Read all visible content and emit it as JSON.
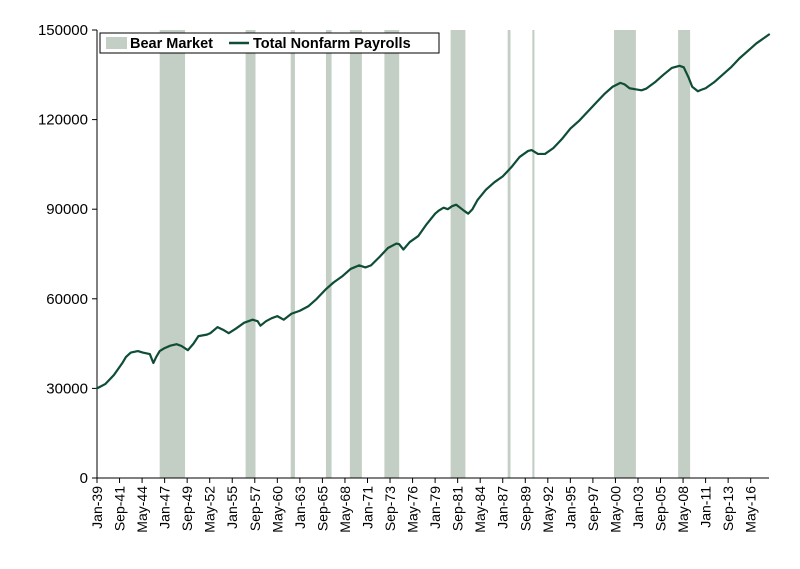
{
  "chart_data": {
    "type": "line",
    "title": "",
    "xlabel": "",
    "ylabel": "",
    "ylim": [
      0,
      150000
    ],
    "xlim": [
      "1939-01",
      "2018-07"
    ],
    "y_ticks": [
      0,
      30000,
      60000,
      90000,
      120000,
      150000
    ],
    "y_tick_labels": [
      "0",
      "30000",
      "60000",
      "90000",
      "120000",
      "150000"
    ],
    "x_ticks": [
      {
        "label": "Jan-39",
        "date": "1939-01"
      },
      {
        "label": "Sep-41",
        "date": "1941-09"
      },
      {
        "label": "May-44",
        "date": "1944-05"
      },
      {
        "label": "Jan-47",
        "date": "1947-01"
      },
      {
        "label": "Sep-49",
        "date": "1949-09"
      },
      {
        "label": "May-52",
        "date": "1952-05"
      },
      {
        "label": "Jan-55",
        "date": "1955-01"
      },
      {
        "label": "Sep-57",
        "date": "1957-09"
      },
      {
        "label": "May-60",
        "date": "1960-05"
      },
      {
        "label": "Jan-63",
        "date": "1963-01"
      },
      {
        "label": "Sep-65",
        "date": "1965-09"
      },
      {
        "label": "May-68",
        "date": "1968-05"
      },
      {
        "label": "Jan-71",
        "date": "1971-01"
      },
      {
        "label": "Sep-73",
        "date": "1973-09"
      },
      {
        "label": "May-76",
        "date": "1976-05"
      },
      {
        "label": "Jan-79",
        "date": "1979-01"
      },
      {
        "label": "Sep-81",
        "date": "1981-09"
      },
      {
        "label": "May-84",
        "date": "1984-05"
      },
      {
        "label": "Jan-87",
        "date": "1987-01"
      },
      {
        "label": "Sep-89",
        "date": "1989-09"
      },
      {
        "label": "May-92",
        "date": "1992-05"
      },
      {
        "label": "Jan-95",
        "date": "1995-01"
      },
      {
        "label": "Sep-97",
        "date": "1997-09"
      },
      {
        "label": "May-00",
        "date": "2000-05"
      },
      {
        "label": "Jan-03",
        "date": "2003-01"
      },
      {
        "label": "Sep-05",
        "date": "2005-09"
      },
      {
        "label": "May-08",
        "date": "2008-05"
      },
      {
        "label": "Jan-11",
        "date": "2011-01"
      },
      {
        "label": "Sep-13",
        "date": "2013-09"
      },
      {
        "label": "May-16",
        "date": "2016-05"
      }
    ],
    "legend": {
      "position": "top-left",
      "entries": [
        {
          "label": "Bear Market",
          "kind": "band",
          "color": "#c3cec4"
        },
        {
          "label": "Total Nonfarm Payrolls",
          "kind": "line",
          "color": "#0f4d34"
        }
      ]
    },
    "grid": false,
    "bear_markets": [
      {
        "start": "1946-06",
        "end": "1949-06"
      },
      {
        "start": "1956-08",
        "end": "1957-10"
      },
      {
        "start": "1961-12",
        "end": "1962-06"
      },
      {
        "start": "1966-02",
        "end": "1966-10"
      },
      {
        "start": "1968-12",
        "end": "1970-05"
      },
      {
        "start": "1973-01",
        "end": "1974-10"
      },
      {
        "start": "1980-11",
        "end": "1982-08"
      },
      {
        "start": "1987-08",
        "end": "1987-12"
      },
      {
        "start": "1990-07",
        "end": "1990-10"
      },
      {
        "start": "2000-03",
        "end": "2002-10"
      },
      {
        "start": "2007-10",
        "end": "2009-03"
      }
    ],
    "series": [
      {
        "name": "Total Nonfarm Payrolls",
        "color": "#0f4d34",
        "points": [
          [
            "1939-01",
            30000
          ],
          [
            "1940-01",
            31500
          ],
          [
            "1941-01",
            34500
          ],
          [
            "1942-01",
            38500
          ],
          [
            "1942-06",
            40500
          ],
          [
            "1943-01",
            42000
          ],
          [
            "1943-11",
            42500
          ],
          [
            "1944-06",
            42000
          ],
          [
            "1945-04",
            41500
          ],
          [
            "1945-09",
            38500
          ],
          [
            "1946-01",
            40500
          ],
          [
            "1946-06",
            42500
          ],
          [
            "1947-01",
            43500
          ],
          [
            "1947-09",
            44300
          ],
          [
            "1948-06",
            44800
          ],
          [
            "1949-01",
            44200
          ],
          [
            "1949-10",
            42800
          ],
          [
            "1950-06",
            45000
          ],
          [
            "1951-01",
            47500
          ],
          [
            "1952-01",
            48000
          ],
          [
            "1952-06",
            48500
          ],
          [
            "1953-04",
            50500
          ],
          [
            "1954-01",
            49500
          ],
          [
            "1954-08",
            48500
          ],
          [
            "1955-06",
            50000
          ],
          [
            "1956-06",
            52000
          ],
          [
            "1957-06",
            53000
          ],
          [
            "1958-01",
            52500
          ],
          [
            "1958-05",
            51000
          ],
          [
            "1959-01",
            52500
          ],
          [
            "1959-09",
            53500
          ],
          [
            "1960-05",
            54200
          ],
          [
            "1961-02",
            53000
          ],
          [
            "1962-01",
            55000
          ],
          [
            "1963-01",
            56000
          ],
          [
            "1964-01",
            57500
          ],
          [
            "1965-01",
            60000
          ],
          [
            "1966-01",
            63000
          ],
          [
            "1967-01",
            65500
          ],
          [
            "1968-01",
            67500
          ],
          [
            "1969-01",
            70000
          ],
          [
            "1970-01",
            71200
          ],
          [
            "1970-10",
            70500
          ],
          [
            "1971-06",
            71200
          ],
          [
            "1972-06",
            74000
          ],
          [
            "1973-06",
            77000
          ],
          [
            "1974-06",
            78500
          ],
          [
            "1974-10",
            78300
          ],
          [
            "1975-04",
            76500
          ],
          [
            "1976-01",
            79000
          ],
          [
            "1977-01",
            81000
          ],
          [
            "1978-01",
            85000
          ],
          [
            "1979-01",
            88500
          ],
          [
            "1979-06",
            89500
          ],
          [
            "1980-01",
            90500
          ],
          [
            "1980-07",
            90000
          ],
          [
            "1981-01",
            91000
          ],
          [
            "1981-07",
            91500
          ],
          [
            "1982-06",
            89500
          ],
          [
            "1982-12",
            88500
          ],
          [
            "1983-06",
            90000
          ],
          [
            "1984-01",
            93000
          ],
          [
            "1985-01",
            96500
          ],
          [
            "1986-01",
            99000
          ],
          [
            "1987-01",
            101000
          ],
          [
            "1988-01",
            104000
          ],
          [
            "1989-01",
            107500
          ],
          [
            "1990-01",
            109500
          ],
          [
            "1990-06",
            109800
          ],
          [
            "1991-03",
            108500
          ],
          [
            "1992-01",
            108500
          ],
          [
            "1993-01",
            110500
          ],
          [
            "1994-01",
            113500
          ],
          [
            "1995-01",
            117000
          ],
          [
            "1996-01",
            119500
          ],
          [
            "1997-01",
            122500
          ],
          [
            "1998-01",
            125500
          ],
          [
            "1999-01",
            128500
          ],
          [
            "2000-01",
            131000
          ],
          [
            "2000-12",
            132300
          ],
          [
            "2001-06",
            131800
          ],
          [
            "2002-01",
            130500
          ],
          [
            "2003-06",
            129800
          ],
          [
            "2004-01",
            130400
          ],
          [
            "2005-01",
            132500
          ],
          [
            "2006-01",
            135000
          ],
          [
            "2007-01",
            137300
          ],
          [
            "2007-12",
            138000
          ],
          [
            "2008-06",
            137500
          ],
          [
            "2009-01",
            134000
          ],
          [
            "2009-06",
            131000
          ],
          [
            "2010-02",
            129500
          ],
          [
            "2010-07",
            130000
          ],
          [
            "2011-01",
            130500
          ],
          [
            "2012-01",
            132500
          ],
          [
            "2013-01",
            135000
          ],
          [
            "2014-01",
            137500
          ],
          [
            "2015-01",
            140500
          ],
          [
            "2016-01",
            143000
          ],
          [
            "2017-01",
            145500
          ],
          [
            "2018-01",
            147500
          ],
          [
            "2018-07",
            148500
          ]
        ]
      }
    ]
  }
}
